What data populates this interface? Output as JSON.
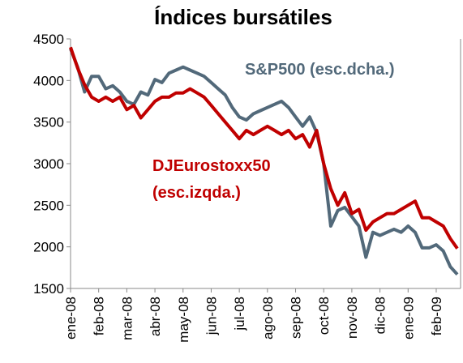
{
  "chart_data": {
    "type": "line",
    "title": "Índices bursátiles",
    "categories": [
      "ene-08",
      null,
      null,
      null,
      "feb-08",
      null,
      null,
      null,
      "mar-08",
      null,
      null,
      null,
      "abr-08",
      null,
      null,
      null,
      "may-08",
      null,
      null,
      null,
      "jun-08",
      null,
      null,
      null,
      "jul-08",
      null,
      null,
      null,
      "ago-08",
      null,
      null,
      null,
      "sep-08",
      null,
      null,
      null,
      "oct-08",
      null,
      null,
      null,
      "nov-08",
      null,
      null,
      null,
      "dic-08",
      null,
      null,
      null,
      "ene-09",
      null,
      null,
      null,
      "feb-09",
      null,
      null,
      null
    ],
    "series": [
      {
        "name": "DJEurostoxx50 (esc.izqda.)",
        "color": "#c00000",
        "values": [
          4400,
          4150,
          3950,
          3800,
          3750,
          3800,
          3750,
          3800,
          3650,
          3700,
          3550,
          3650,
          3750,
          3800,
          3800,
          3850,
          3850,
          3900,
          3850,
          3800,
          3700,
          3600,
          3500,
          3400,
          3300,
          3400,
          3350,
          3400,
          3450,
          3400,
          3350,
          3400,
          3300,
          3350,
          3200,
          3400,
          3000,
          2700,
          2500,
          2650,
          2400,
          2450,
          2200,
          2300,
          2350,
          2400,
          2400,
          2450,
          2500,
          2550,
          2350,
          2350,
          2300,
          2250,
          2100,
          1980
        ]
      },
      {
        "name": "S&P500 (esc.dcha.)",
        "color": "#52697a",
        "axis": "y2",
        "values": [
          1468,
          1410,
          1330,
          1380,
          1380,
          1340,
          1350,
          1330,
          1300,
          1290,
          1330,
          1320,
          1370,
          1360,
          1390,
          1400,
          1410,
          1400,
          1390,
          1380,
          1360,
          1340,
          1320,
          1280,
          1250,
          1240,
          1260,
          1270,
          1280,
          1290,
          1300,
          1280,
          1250,
          1220,
          1250,
          1200,
          1100,
          900,
          950,
          960,
          930,
          900,
          800,
          880,
          870,
          880,
          890,
          880,
          900,
          880,
          830,
          830,
          840,
          820,
          770,
          745
        ]
      }
    ],
    "ylim": [
      1500,
      4500
    ],
    "yticks": [
      1500,
      2000,
      2500,
      3000,
      3500,
      4000,
      4500
    ],
    "y2lim": [
      700,
      1500
    ]
  }
}
